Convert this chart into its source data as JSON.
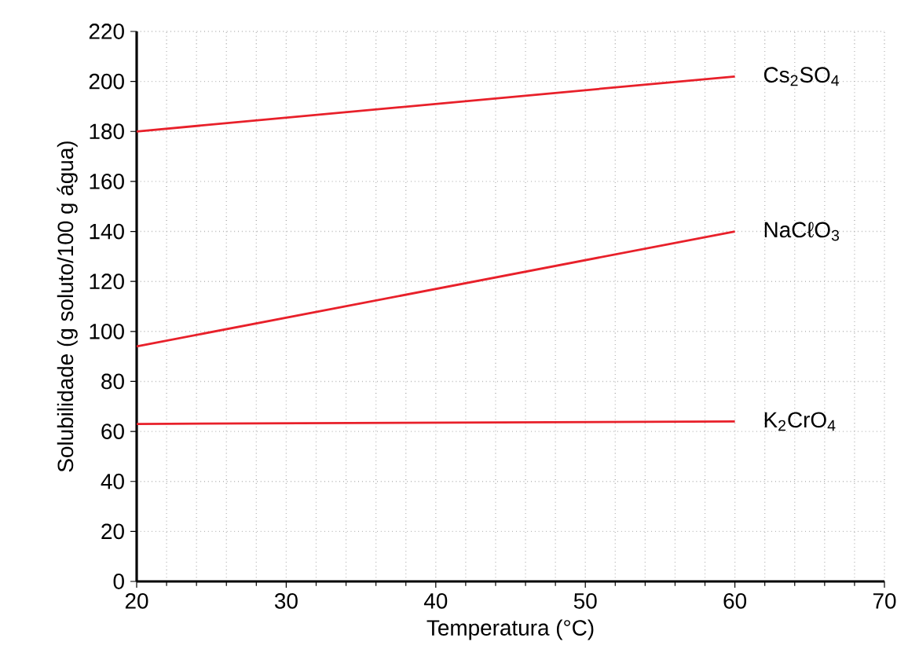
{
  "chart_data": {
    "type": "line",
    "xlabel": "Temperatura (°C)",
    "ylabel": "Solubilidade (g soluto/100 g água)",
    "x": [
      20,
      60
    ],
    "series": [
      {
        "name": "Cs$_{2}$SO$_{4}$",
        "color": "#e8202a",
        "values": [
          180,
          202
        ]
      },
      {
        "name": "NaCℓO$_{3}$",
        "color": "#e8202a",
        "values": [
          94,
          140
        ]
      },
      {
        "name": "K$_{2}$CrO$_{4}$",
        "color": "#e8202a",
        "values": [
          63,
          64
        ]
      }
    ],
    "xlim": [
      20,
      70
    ],
    "xticks": [
      20,
      30,
      40,
      50,
      60,
      70
    ],
    "ylim": [
      0,
      220
    ],
    "yticks": [
      0,
      20,
      40,
      60,
      80,
      100,
      120,
      140,
      160,
      180,
      200,
      220
    ],
    "grid": true,
    "legend": false,
    "marker": "none",
    "line_style": "solid"
  }
}
